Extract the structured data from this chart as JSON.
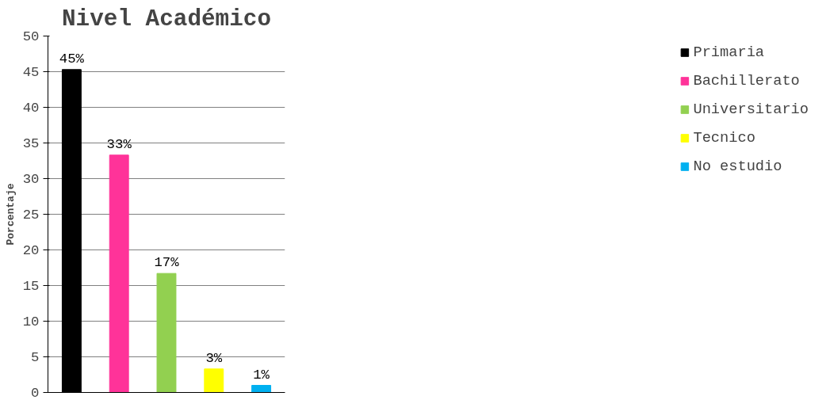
{
  "chart_data": {
    "type": "bar",
    "title": "Nivel Académico",
    "ylabel": "Porcentaje",
    "categories": [
      null,
      null,
      null,
      null,
      null
    ],
    "series": [
      {
        "name": "Primaria",
        "color": "#000000",
        "values": [
          45.3,
          null,
          null,
          null,
          null
        ],
        "value_labels": [
          "45%",
          null,
          null,
          null,
          null
        ]
      },
      {
        "name": "Bachillerato",
        "color": "#ff3399",
        "values": [
          null,
          33.3,
          null,
          null,
          null
        ],
        "value_labels": [
          null,
          "33%",
          null,
          null,
          null
        ]
      },
      {
        "name": "Universitario",
        "color": "#92d050",
        "values": [
          null,
          null,
          16.7,
          null,
          null
        ],
        "value_labels": [
          null,
          null,
          "17%",
          null,
          null
        ]
      },
      {
        "name": "Tecnico",
        "color": "#ffff00",
        "values": [
          null,
          null,
          null,
          3.3,
          null
        ],
        "value_labels": [
          null,
          null,
          null,
          "3%",
          null
        ]
      },
      {
        "name": "No estudio",
        "color": "#00b0f0",
        "values": [
          null,
          null,
          null,
          null,
          1
        ],
        "value_labels": [
          null,
          null,
          null,
          null,
          "1%"
        ]
      }
    ],
    "ylim": [
      0,
      50
    ],
    "yticks": [
      0,
      5,
      10,
      15,
      20,
      25,
      30,
      35,
      40,
      45,
      50
    ],
    "grid": "y",
    "legend": "right"
  }
}
